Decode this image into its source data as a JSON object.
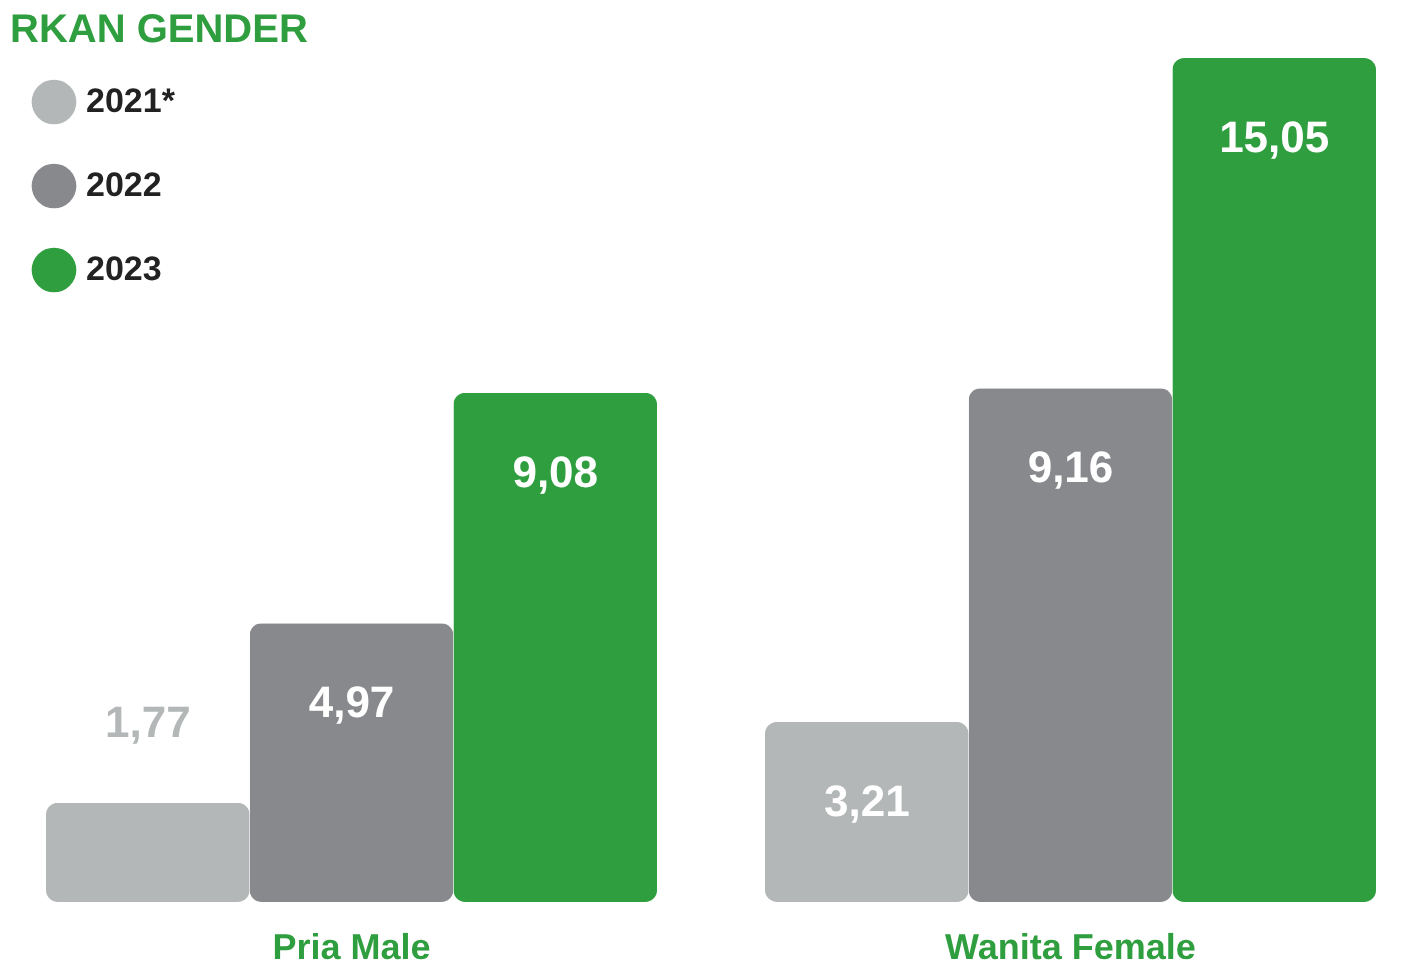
{
  "chart_data": {
    "type": "bar",
    "title": "RKAN GENDER",
    "categories": [
      "Pria Male",
      "Wanita Female"
    ],
    "series": [
      {
        "name": "2021*",
        "color": "#b4b7b7",
        "values": [
          1.77,
          3.21
        ],
        "value_labels": [
          "1,77",
          "3,21"
        ]
      },
      {
        "name": "2022",
        "color": "#88898c",
        "values": [
          4.97,
          9.16
        ],
        "value_labels": [
          "4,97",
          "9,16"
        ]
      },
      {
        "name": "2023",
        "color": "#2e9e3f",
        "values": [
          9.08,
          15.05
        ],
        "value_labels": [
          "9,08",
          "15,05"
        ]
      }
    ],
    "legend": "top left",
    "grid": false
  }
}
